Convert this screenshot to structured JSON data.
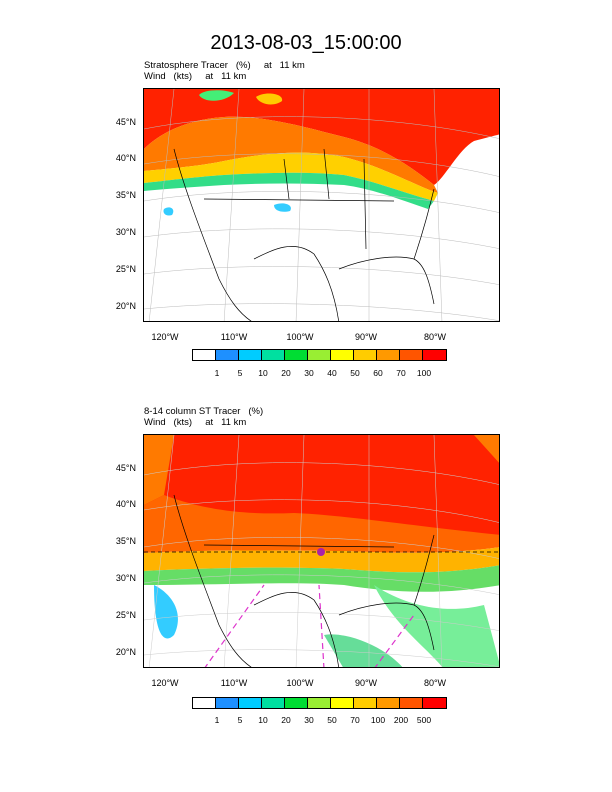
{
  "title": "2013-08-03_15:00:00",
  "panel1": {
    "subtitle1": "Stratosphere Tracer   (%)     at   11 km",
    "subtitle2": "Wind   (kts)     at   11 km",
    "colorbar_labels": [
      "1",
      "5",
      "10",
      "20",
      "30",
      "40",
      "50",
      "60",
      "70",
      "100"
    ]
  },
  "panel2": {
    "subtitle1": "8-14 column ST Tracer   (%)",
    "subtitle2": "Wind   (kts)     at   11 km",
    "colorbar_labels": [
      "1",
      "5",
      "10",
      "20",
      "30",
      "50",
      "70",
      "100",
      "200",
      "500"
    ]
  },
  "lat_labels": [
    "45°N",
    "40°N",
    "35°N",
    "30°N",
    "25°N",
    "20°N"
  ],
  "lon_labels": [
    "120°W",
    "110°W",
    "100°W",
    "90°W",
    "80°W"
  ],
  "colorbar_colors": [
    "#ffffff",
    "#1e90ff",
    "#00ccff",
    "#00e0a0",
    "#00dd33",
    "#99ee33",
    "#ffff00",
    "#ffcc00",
    "#ff9900",
    "#ff5500",
    "#ff0000"
  ]
}
